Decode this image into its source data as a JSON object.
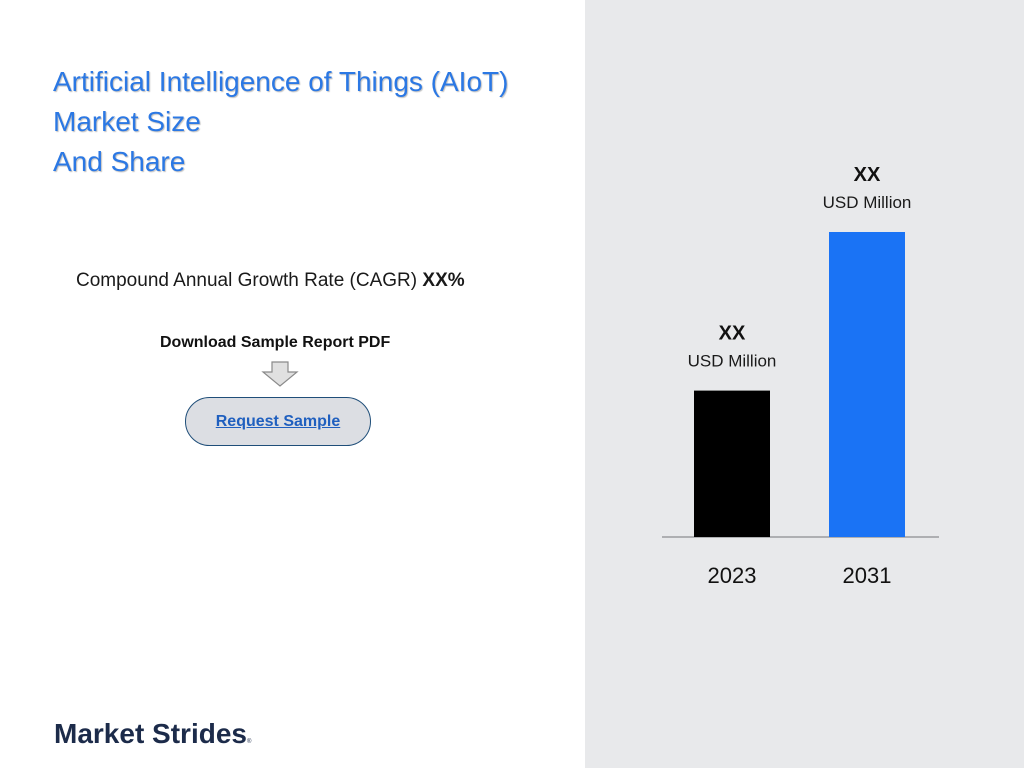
{
  "title_lines": [
    "Artificial Intelligence of Things (AIoT)",
    "Market  Size",
    "And Share"
  ],
  "cagr": {
    "label": "Compound Annual Growth Rate (CAGR) ",
    "value": "XX%"
  },
  "download_label": "Download Sample Report PDF",
  "request_button": "Request Sample",
  "logo": {
    "name": "Market Strides",
    "mark": "®"
  },
  "chart_data": {
    "type": "bar",
    "categories": [
      "2023",
      "2031"
    ],
    "values": [
      48,
      100
    ],
    "value_note": "relative bar heights read from picture; actual values printed as XX",
    "data_labels": [
      {
        "value": "XX",
        "unit": "USD Million"
      },
      {
        "value": "XX",
        "unit": "USD Million"
      }
    ],
    "colors": [
      "#000000",
      "#1a73f5"
    ],
    "title": "",
    "xlabel": "",
    "ylabel": "",
    "grid": false
  },
  "colors": {
    "title": "#2b78e4",
    "panel": "#e8e9eb",
    "button_border": "#1f4e79",
    "logo": "#1c2b4a"
  }
}
